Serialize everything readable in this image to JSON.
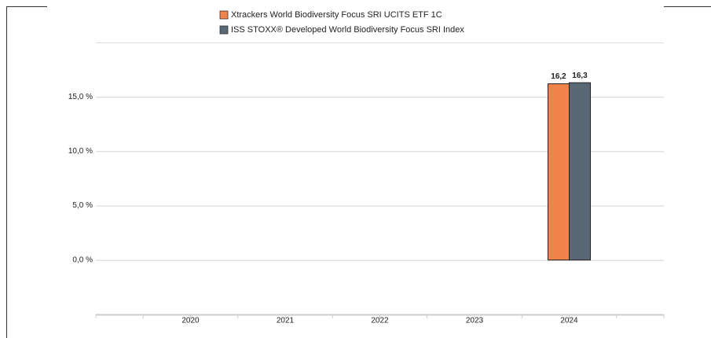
{
  "chart_data": {
    "type": "bar",
    "categories": [
      "2020",
      "2021",
      "2022",
      "2023",
      "2024"
    ],
    "series": [
      {
        "name": "Xtrackers World Biodiversity Focus SRI UCITS ETF 1C",
        "color": "#f0844b",
        "values": [
          null,
          null,
          null,
          null,
          16.2
        ],
        "value_labels": [
          null,
          null,
          null,
          null,
          "16,2"
        ]
      },
      {
        "name": "ISS STOXX® Developed World Biodiversity Focus SRI Index",
        "color": "#5a6875",
        "values": [
          null,
          null,
          null,
          null,
          16.3
        ],
        "value_labels": [
          null,
          null,
          null,
          null,
          "16,3"
        ]
      }
    ],
    "ylim": [
      -5,
      20
    ],
    "yticks": [
      {
        "value": 0,
        "label": "0,0 %"
      },
      {
        "value": 5,
        "label": "5,0 %"
      },
      {
        "value": 10,
        "label": "10,0 %"
      },
      {
        "value": 15,
        "label": "15,0 %"
      }
    ],
    "grid": true,
    "legend": "top"
  }
}
